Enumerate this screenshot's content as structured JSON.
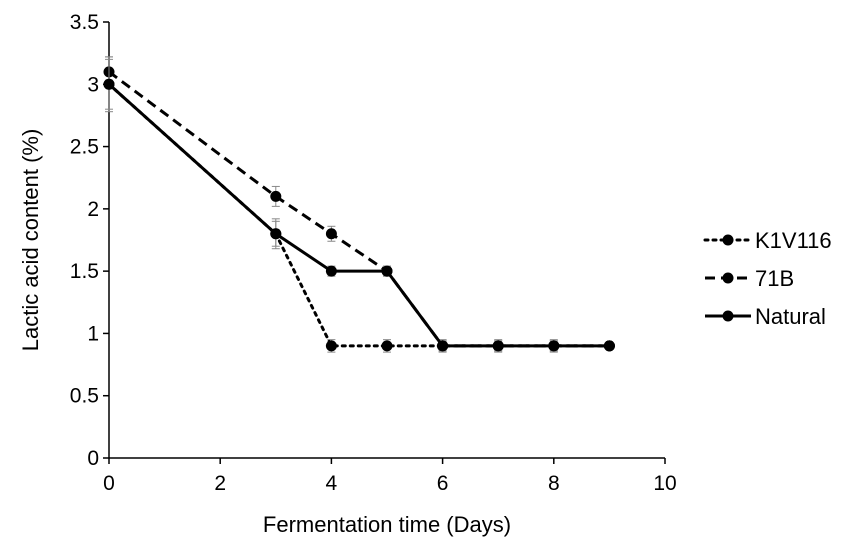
{
  "chart_data": {
    "type": "line",
    "title": "",
    "xlabel": "Fermentation time (Days)",
    "ylabel": "Lactic acid content (%)",
    "xlim": [
      0,
      10
    ],
    "ylim": [
      0,
      3.5
    ],
    "xticks": [
      "0",
      "2",
      "4",
      "6",
      "8",
      "10"
    ],
    "yticks": [
      "0",
      "0.5",
      "1",
      "1.5",
      "2",
      "2.5",
      "3",
      "3.5"
    ],
    "grid": false,
    "legend_position": "right",
    "series": [
      {
        "name": "K1V116",
        "line_style": "dotted",
        "color": "#000000",
        "x": [
          0,
          3,
          4,
          5,
          6,
          7,
          8,
          9
        ],
        "y": [
          3.0,
          1.8,
          0.9,
          0.9,
          0.9,
          0.9,
          0.9,
          0.9
        ],
        "error": [
          0.2,
          0.12,
          0.05,
          0.05,
          0.05,
          0.05,
          0.05,
          0.0
        ]
      },
      {
        "name": "71B",
        "line_style": "dashed",
        "color": "#000000",
        "x": [
          0,
          3,
          4,
          5,
          6,
          7,
          8,
          9
        ],
        "y": [
          3.1,
          2.1,
          1.8,
          1.5,
          0.9,
          0.9,
          0.9,
          0.9
        ],
        "error": [
          0.12,
          0.08,
          0.06,
          0.04,
          0.04,
          0.04,
          0.04,
          0.0
        ]
      },
      {
        "name": "Natural",
        "line_style": "solid",
        "color": "#000000",
        "x": [
          0,
          3,
          4,
          5,
          6,
          7,
          8,
          9
        ],
        "y": [
          3.0,
          1.8,
          1.5,
          1.5,
          0.9,
          0.9,
          0.9,
          0.9
        ],
        "error": [
          0.22,
          0.1,
          0.04,
          0.04,
          0.04,
          0.04,
          0.04,
          0.0
        ]
      }
    ]
  }
}
